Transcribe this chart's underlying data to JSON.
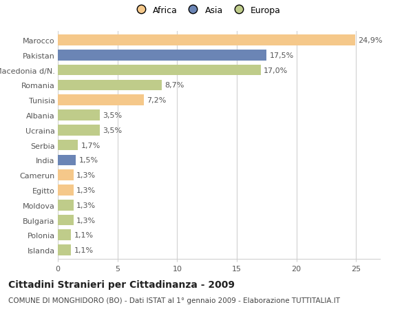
{
  "countries": [
    "Marocco",
    "Pakistan",
    "Macedonia d/N.",
    "Romania",
    "Tunisia",
    "Albania",
    "Ucraina",
    "Serbia",
    "India",
    "Camerun",
    "Egitto",
    "Moldova",
    "Bulgaria",
    "Polonia",
    "Islanda"
  ],
  "values": [
    24.9,
    17.5,
    17.0,
    8.7,
    7.2,
    3.5,
    3.5,
    1.7,
    1.5,
    1.3,
    1.3,
    1.3,
    1.3,
    1.1,
    1.1
  ],
  "labels": [
    "24,9%",
    "17,5%",
    "17,0%",
    "8,7%",
    "7,2%",
    "3,5%",
    "3,5%",
    "1,7%",
    "1,5%",
    "1,3%",
    "1,3%",
    "1,3%",
    "1,3%",
    "1,1%",
    "1,1%"
  ],
  "continents": [
    "Africa",
    "Asia",
    "Europa",
    "Europa",
    "Africa",
    "Europa",
    "Europa",
    "Europa",
    "Asia",
    "Africa",
    "Africa",
    "Europa",
    "Europa",
    "Europa",
    "Europa"
  ],
  "colors": {
    "Africa": "#F5C88A",
    "Asia": "#6B85B5",
    "Europa": "#BFCC8A"
  },
  "legend_order": [
    "Africa",
    "Asia",
    "Europa"
  ],
  "title": "Cittadini Stranieri per Cittadinanza - 2009",
  "subtitle": "COMUNE DI MONGHIDORO (BO) - Dati ISTAT al 1° gennaio 2009 - Elaborazione TUTTITALIA.IT",
  "xlim": [
    0,
    27
  ],
  "xticks": [
    0,
    5,
    10,
    15,
    20,
    25
  ],
  "background_color": "#ffffff",
  "grid_color": "#d0d0d0",
  "bar_height": 0.72,
  "title_fontsize": 10,
  "subtitle_fontsize": 7.5,
  "tick_fontsize": 8,
  "label_fontsize": 8
}
